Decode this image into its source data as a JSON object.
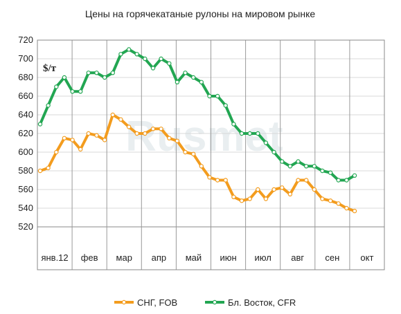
{
  "chart_data": {
    "type": "line",
    "title": "Цены на горячекатаные рулоны на мировом рынке",
    "unit_label": "$/т",
    "watermark": "Rusmet",
    "ylim": [
      520,
      720
    ],
    "yticks": [
      520,
      540,
      560,
      580,
      600,
      620,
      640,
      660,
      680,
      700,
      720
    ],
    "grid": true,
    "legend_position": "bottom",
    "months": [
      "янв.12",
      "фев",
      "мар",
      "апр",
      "май",
      "июн",
      "июл",
      "авг",
      "сен",
      "окт"
    ],
    "series": [
      {
        "name": "СНГ, FOB",
        "color": "#f39c1e",
        "values": [
          580,
          583,
          600,
          615,
          613,
          603,
          620,
          618,
          613,
          640,
          635,
          627,
          620,
          620,
          625,
          625,
          615,
          612,
          600,
          598,
          585,
          573,
          570,
          570,
          552,
          548,
          550,
          560,
          550,
          560,
          562,
          555,
          570,
          570,
          560,
          550,
          548,
          545,
          540,
          537
        ]
      },
      {
        "name": "Бл. Восток, CFR",
        "color": "#22a652",
        "values": [
          630,
          650,
          670,
          680,
          665,
          665,
          685,
          685,
          680,
          685,
          705,
          710,
          705,
          700,
          690,
          700,
          695,
          675,
          685,
          680,
          675,
          660,
          660,
          650,
          630,
          620,
          620,
          620,
          610,
          600,
          590,
          585,
          590,
          585,
          585,
          580,
          578,
          570,
          570,
          575
        ]
      }
    ]
  }
}
